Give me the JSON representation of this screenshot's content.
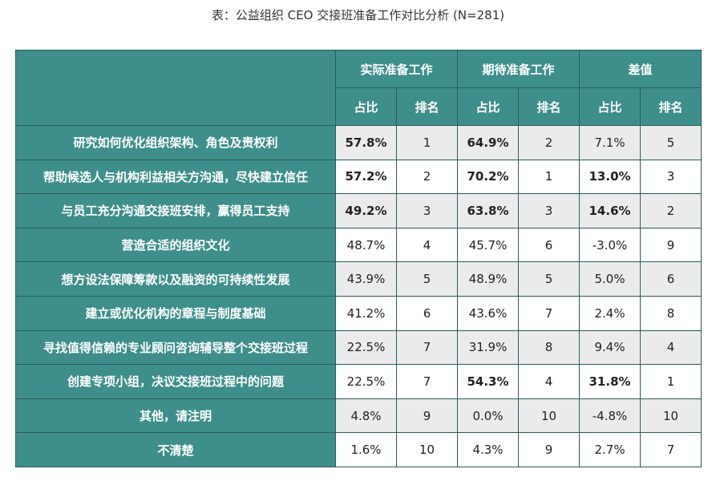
{
  "chart_data": {
    "type": "table",
    "title": "表：公益组织 CEO 交接班准备工作对比分析 (N=281)",
    "group_headers": [
      "实际准备工作",
      "期待准备工作",
      "差值"
    ],
    "sub_headers": [
      "占比",
      "排名",
      "占比",
      "排名",
      "占比",
      "排名"
    ],
    "rows": [
      {
        "label": "研究如何优化组织架构、角色及责权利",
        "values": [
          "57.8%",
          "1",
          "64.9%",
          "2",
          "7.1%",
          "5"
        ],
        "bold": [
          true,
          false,
          true,
          false,
          false,
          false
        ]
      },
      {
        "label": "帮助候选人与机构利益相关方沟通，尽快建立信任",
        "values": [
          "57.2%",
          "2",
          "70.2%",
          "1",
          "13.0%",
          "3"
        ],
        "bold": [
          true,
          false,
          true,
          false,
          true,
          false
        ]
      },
      {
        "label": "与员工充分沟通交接班安排，赢得员工支持",
        "values": [
          "49.2%",
          "3",
          "63.8%",
          "3",
          "14.6%",
          "2"
        ],
        "bold": [
          true,
          false,
          true,
          false,
          true,
          false
        ]
      },
      {
        "label": "营造合适的组织文化",
        "values": [
          "48.7%",
          "4",
          "45.7%",
          "6",
          "-3.0%",
          "9"
        ],
        "bold": [
          false,
          false,
          false,
          false,
          false,
          false
        ]
      },
      {
        "label": "想方设法保障筹款以及融资的可持续性发展",
        "values": [
          "43.9%",
          "5",
          "48.9%",
          "5",
          "5.0%",
          "6"
        ],
        "bold": [
          false,
          false,
          false,
          false,
          false,
          false
        ]
      },
      {
        "label": "建立或优化机构的章程与制度基础",
        "values": [
          "41.2%",
          "6",
          "43.6%",
          "7",
          "2.4%",
          "8"
        ],
        "bold": [
          false,
          false,
          false,
          false,
          false,
          false
        ]
      },
      {
        "label": "寻找值得信赖的专业顾问咨询辅导整个交接班过程",
        "values": [
          "22.5%",
          "7",
          "31.9%",
          "8",
          "9.4%",
          "4"
        ],
        "bold": [
          false,
          false,
          false,
          false,
          false,
          false
        ]
      },
      {
        "label": "创建专项小组，决议交接班过程中的问题",
        "values": [
          "22.5%",
          "7",
          "54.3%",
          "4",
          "31.8%",
          "1"
        ],
        "bold": [
          false,
          false,
          true,
          false,
          true,
          false
        ]
      },
      {
        "label": "其他，请注明",
        "values": [
          "4.8%",
          "9",
          "0.0%",
          "10",
          "-4.8%",
          "10"
        ],
        "bold": [
          false,
          false,
          false,
          false,
          false,
          false
        ]
      },
      {
        "label": "不清楚",
        "values": [
          "1.6%",
          "10",
          "4.3%",
          "9",
          "2.7%",
          "7"
        ],
        "bold": [
          false,
          false,
          false,
          false,
          false,
          false
        ]
      }
    ],
    "colors": {
      "header_bg": "#3e8f8b",
      "header_text": "#ffffff",
      "border": "#2a5c5a",
      "alt_row_bg": "#ebebeb",
      "plain_row_bg": "#ffffff"
    }
  }
}
